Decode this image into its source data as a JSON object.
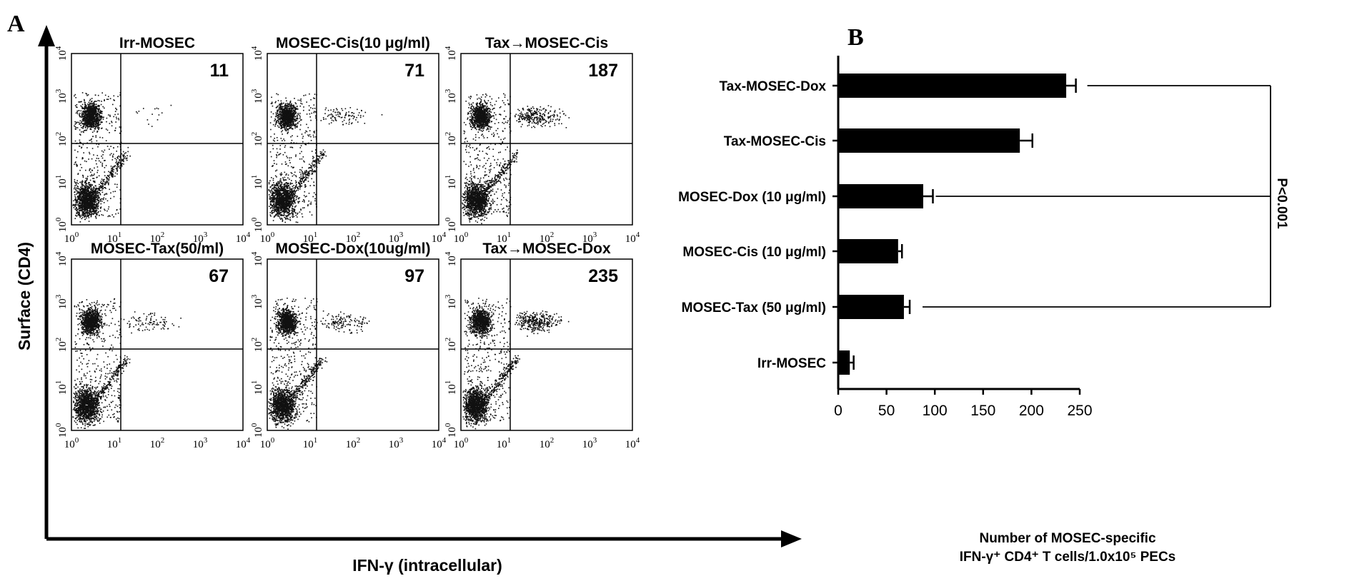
{
  "figure": {
    "panel_a_letter": "A",
    "panel_b_letter": "B"
  },
  "panel_a": {
    "y_label": "Surface (CD4)",
    "x_label": "IFN-γ (intracellular)",
    "quadrant_x_gate": 1.15,
    "quadrant_y_gate": 1.9,
    "plots": [
      {
        "title": "Irr-MOSEC",
        "count": "11"
      },
      {
        "title": "MOSEC-Cis(10 μg/ml)",
        "count": "71"
      },
      {
        "title": "Tax→MOSEC-Cis",
        "count": "187"
      },
      {
        "title": "MOSEC-Tax(50/ml)",
        "count": "67"
      },
      {
        "title": "MOSEC-Dox(10ug/ml)",
        "count": "97"
      },
      {
        "title": "Tax→MOSEC-Dox",
        "count": "235"
      }
    ],
    "log_ticks": [
      "0",
      "1",
      "2",
      "3",
      "4"
    ]
  },
  "chart_data": {
    "type": "bar",
    "orientation": "horizontal",
    "categories": [
      "Tax-MOSEC-Dox",
      "Tax-MOSEC-Cis",
      "MOSEC-Dox (10 μg/ml)",
      "MOSEC-Cis (10 μg/ml)",
      "MOSEC-Tax (50 μg/ml)",
      "Irr-MOSEC"
    ],
    "values": [
      236,
      188,
      88,
      62,
      68,
      12
    ],
    "errors": [
      10,
      13,
      10,
      4,
      6,
      4
    ],
    "xlim": [
      0,
      250
    ],
    "xticks": [
      0,
      50,
      100,
      150,
      200,
      250
    ],
    "xlabel_line1": "Number of MOSEC-specific",
    "xlabel_line2": "IFN-γ⁺ CD4⁺ T cells/1.0x10⁵ PECs",
    "significance": "P<0.001",
    "bar_color": "#000000"
  }
}
